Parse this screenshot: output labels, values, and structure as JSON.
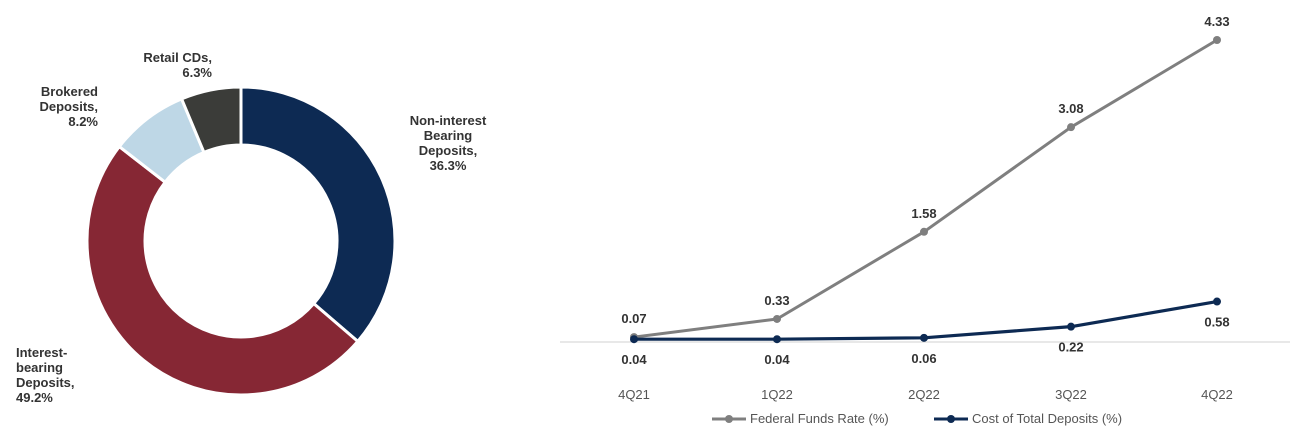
{
  "chart_data": [
    {
      "type": "pie",
      "donut": true,
      "categories": [
        "Non-interest Bearing Deposits",
        "Interest-bearing Deposits",
        "Brokered Deposits",
        "Retail CDs"
      ],
      "values": [
        36.3,
        49.2,
        8.2,
        6.3
      ],
      "value_labels": [
        "36.3%",
        "49.2%",
        "8.2%",
        "6.3%"
      ],
      "label_lines": [
        [
          "Non-interest",
          "Bearing",
          "Deposits,",
          "36.3%"
        ],
        [
          "Interest-",
          "bearing",
          "Deposits,",
          "49.2%"
        ],
        [
          "Brokered",
          "Deposits,",
          "8.2%"
        ],
        [
          "Retail CDs,",
          "6.3%"
        ]
      ],
      "colors": [
        "#0d2a53",
        "#862734",
        "#bed7e6",
        "#3b3c39"
      ]
    },
    {
      "type": "line",
      "categories": [
        "4Q21",
        "1Q22",
        "2Q22",
        "3Q22",
        "4Q22"
      ],
      "series": [
        {
          "name": "Federal Funds Rate (%)",
          "values": [
            0.07,
            0.33,
            1.58,
            3.08,
            4.33
          ],
          "labels": [
            "0.07",
            "0.33",
            "1.58",
            "3.08",
            "4.33"
          ],
          "color": "#7f7f7f"
        },
        {
          "name": "Cost of Total Deposits (%)",
          "values": [
            0.04,
            0.04,
            0.06,
            0.22,
            0.58
          ],
          "labels": [
            "0.04",
            "0.04",
            "0.06",
            "0.22",
            "0.58"
          ],
          "color": "#0d2a53"
        }
      ],
      "ylim": [
        0,
        4.33
      ],
      "grid": false,
      "legend": "bottom"
    }
  ]
}
